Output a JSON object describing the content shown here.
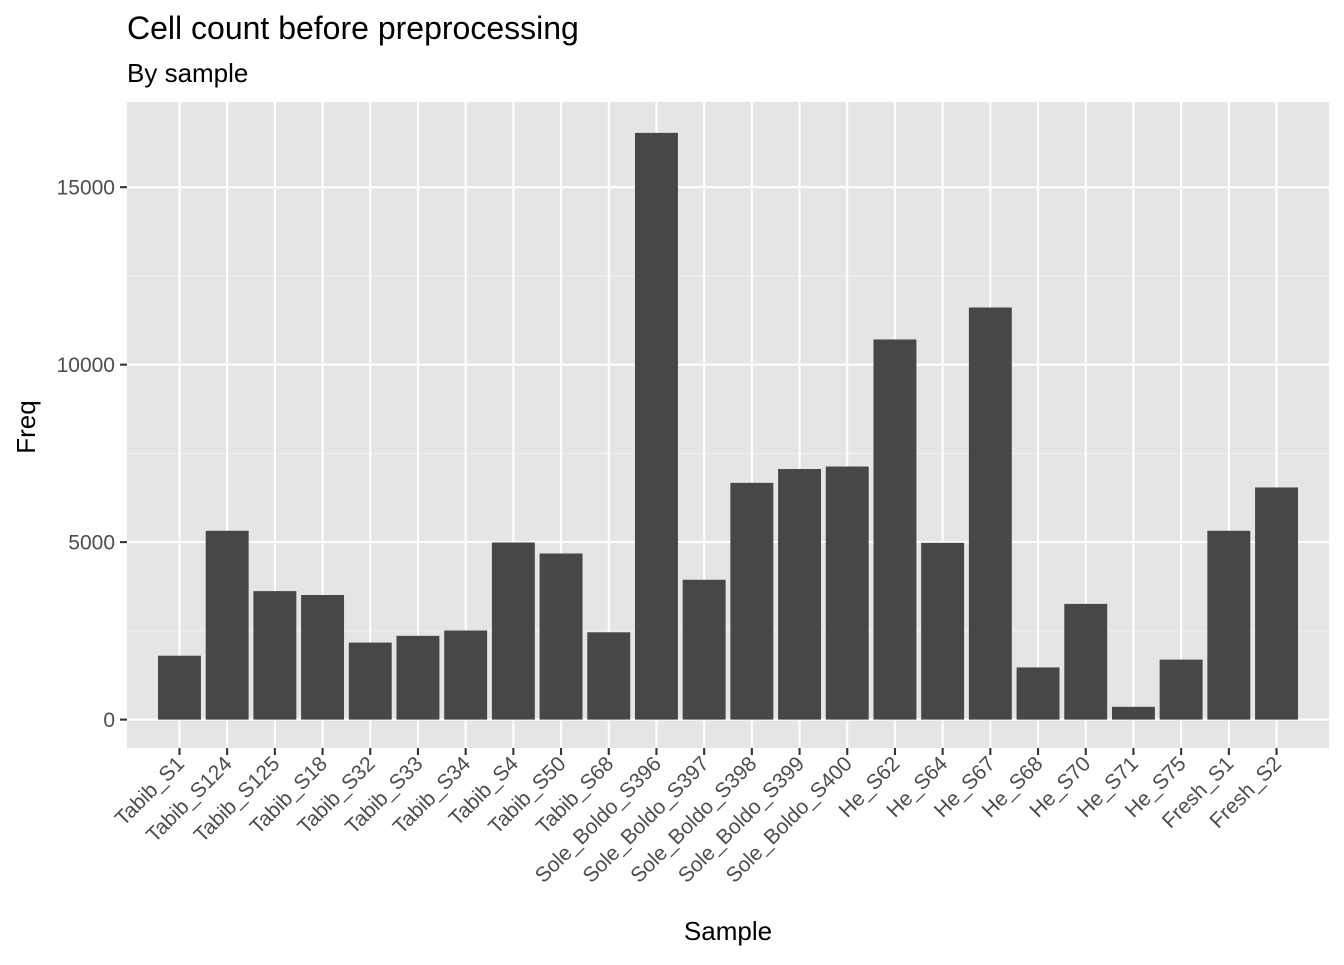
{
  "chart_data": {
    "type": "bar",
    "title": "Cell count before preprocessing",
    "subtitle": "By sample",
    "xlabel": "Sample",
    "ylabel": "Freq",
    "ylim": [
      -800,
      17400
    ],
    "yticks": [
      0,
      5000,
      10000,
      15000
    ],
    "grid": true,
    "legend": "none",
    "colors": {
      "bar": "#474747",
      "panel": "#e5e5e5",
      "grid_major": "#ffffff",
      "grid_minor": "#f1f1f1",
      "tick": "#333333"
    },
    "categories": [
      "Tabib_S1",
      "Tabib_S124",
      "Tabib_S125",
      "Tabib_S18",
      "Tabib_S32",
      "Tabib_S33",
      "Tabib_S34",
      "Tabib_S4",
      "Tabib_S50",
      "Tabib_S68",
      "Sole_Boldo_S396",
      "Sole_Boldo_S397",
      "Sole_Boldo_S398",
      "Sole_Boldo_S399",
      "Sole_Boldo_S400",
      "He_S62",
      "He_S64",
      "He_S67",
      "He_S68",
      "He_S70",
      "He_S71",
      "He_S75",
      "Fresh_S1",
      "Fresh_S2"
    ],
    "values": [
      1800,
      5320,
      3620,
      3510,
      2170,
      2360,
      2510,
      4990,
      4680,
      2460,
      16530,
      3940,
      6670,
      7060,
      7130,
      10710,
      4980,
      11610,
      1470,
      3260,
      360,
      1690,
      5320,
      6540
    ]
  }
}
